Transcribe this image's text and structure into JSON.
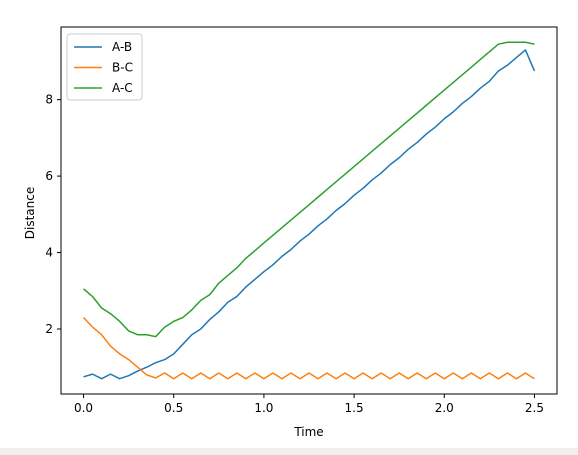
{
  "chart_data": {
    "type": "line",
    "title": "",
    "xlabel": "Time",
    "ylabel": "Distance",
    "xlim": [
      -0.125,
      2.625
    ],
    "ylim": [
      0.3,
      9.9
    ],
    "x_ticks": [
      0.0,
      0.5,
      1.0,
      1.5,
      2.0,
      2.5
    ],
    "x_tick_labels": [
      "0.0",
      "0.5",
      "1.0",
      "1.5",
      "2.0",
      "2.5"
    ],
    "y_ticks": [
      2,
      4,
      6,
      8
    ],
    "y_tick_labels": [
      "2",
      "4",
      "6",
      "8"
    ],
    "grid": false,
    "legend_position": "upper-left",
    "x": [
      0.0,
      0.05,
      0.1,
      0.15,
      0.2,
      0.25,
      0.3,
      0.35,
      0.4,
      0.45,
      0.5,
      0.55,
      0.6,
      0.65,
      0.7,
      0.75,
      0.8,
      0.85,
      0.9,
      0.95,
      1.0,
      1.05,
      1.1,
      1.15,
      1.2,
      1.25,
      1.3,
      1.35,
      1.4,
      1.45,
      1.5,
      1.55,
      1.6,
      1.65,
      1.7,
      1.75,
      1.8,
      1.85,
      1.9,
      1.95,
      2.0,
      2.05,
      2.1,
      2.15,
      2.2,
      2.25,
      2.3,
      2.35,
      2.4,
      2.45,
      2.5
    ],
    "series": [
      {
        "name": "A-B",
        "color": "#1f77b4",
        "values": [
          0.75,
          0.82,
          0.7,
          0.82,
          0.7,
          0.78,
          0.9,
          1.0,
          1.12,
          1.2,
          1.35,
          1.6,
          1.85,
          2.0,
          2.25,
          2.45,
          2.7,
          2.85,
          3.1,
          3.3,
          3.5,
          3.68,
          3.9,
          4.08,
          4.3,
          4.48,
          4.7,
          4.88,
          5.1,
          5.28,
          5.5,
          5.68,
          5.9,
          6.08,
          6.3,
          6.48,
          6.7,
          6.88,
          7.1,
          7.28,
          7.5,
          7.68,
          7.9,
          8.08,
          8.3,
          8.48,
          8.75,
          8.9,
          9.1,
          9.3,
          8.75
        ]
      },
      {
        "name": "B-C",
        "color": "#ff7f0e",
        "values": [
          2.3,
          2.05,
          1.85,
          1.55,
          1.35,
          1.2,
          1.0,
          0.8,
          0.72,
          0.85,
          0.7,
          0.85,
          0.7,
          0.85,
          0.7,
          0.85,
          0.7,
          0.85,
          0.7,
          0.85,
          0.7,
          0.85,
          0.7,
          0.85,
          0.7,
          0.85,
          0.7,
          0.85,
          0.7,
          0.85,
          0.7,
          0.85,
          0.7,
          0.85,
          0.7,
          0.85,
          0.7,
          0.85,
          0.7,
          0.85,
          0.7,
          0.85,
          0.7,
          0.85,
          0.7,
          0.85,
          0.7,
          0.85,
          0.7,
          0.85,
          0.7
        ]
      },
      {
        "name": "A-C",
        "color": "#2ca02c",
        "values": [
          3.05,
          2.85,
          2.55,
          2.4,
          2.2,
          1.95,
          1.85,
          1.85,
          1.8,
          2.05,
          2.2,
          2.3,
          2.5,
          2.75,
          2.9,
          3.2,
          3.4,
          3.6,
          3.85,
          4.05,
          4.25,
          4.45,
          4.65,
          4.85,
          5.05,
          5.25,
          5.45,
          5.65,
          5.85,
          6.05,
          6.25,
          6.45,
          6.65,
          6.85,
          7.05,
          7.25,
          7.45,
          7.65,
          7.85,
          8.05,
          8.25,
          8.45,
          8.65,
          8.85,
          9.05,
          9.25,
          9.45,
          9.5,
          9.5,
          9.5,
          9.45
        ]
      }
    ]
  }
}
